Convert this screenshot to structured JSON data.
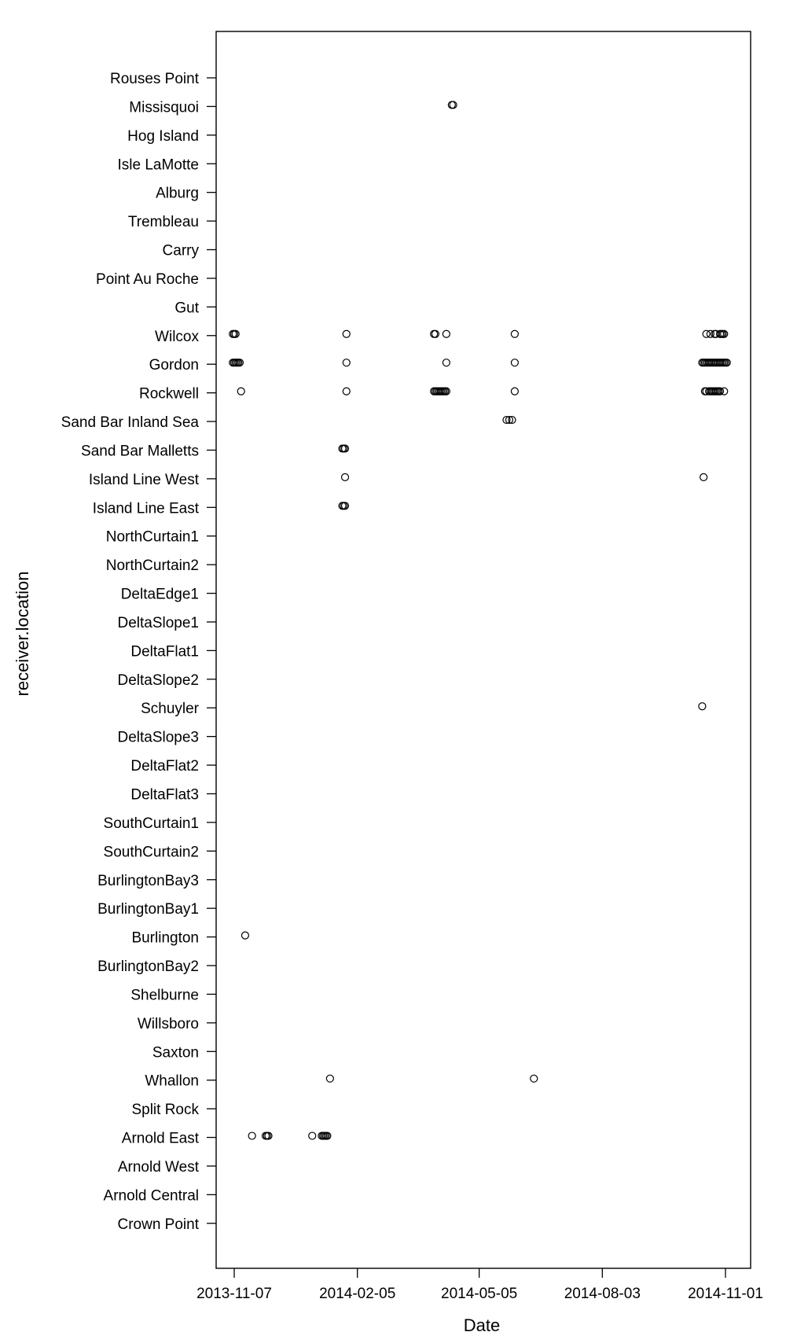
{
  "chart_data": {
    "type": "scatter",
    "xlabel": "Date",
    "ylabel": "receiver.location",
    "x_ticks": [
      "2013-11-07",
      "2014-02-05",
      "2014-05-05",
      "2014-08-03",
      "2014-11-01"
    ],
    "xlim": [
      "2013-10-29",
      "2014-11-15"
    ],
    "y_categories": [
      "Rouses Point",
      "Missisquoi",
      "Hog Island",
      "Isle LaMotte",
      "Alburg",
      "Trembleau",
      "Carry",
      "Point Au Roche",
      "Gut",
      "Wilcox",
      "Gordon",
      "Rockwell",
      "Sand Bar Inland Sea",
      "Sand Bar Malletts",
      "Island Line West",
      "Island Line East",
      "NorthCurtain1",
      "NorthCurtain2",
      "DeltaEdge1",
      "DeltaSlope1",
      "DeltaFlat1",
      "DeltaSlope2",
      "Schuyler",
      "DeltaSlope3",
      "DeltaFlat2",
      "DeltaFlat3",
      "SouthCurtain1",
      "SouthCurtain2",
      "BurlingtonBay3",
      "BurlingtonBay1",
      "Burlington",
      "BurlingtonBay2",
      "Shelburne",
      "Willsboro",
      "Saxton",
      "Whallon",
      "Split Rock",
      "Arnold East",
      "Arnold West",
      "Arnold Central",
      "Crown Point"
    ],
    "marker": "open-circle",
    "grid": false,
    "legend": "none",
    "points": [
      {
        "location": "Missisquoi",
        "dates": [
          "2014-04-15",
          "2014-04-16"
        ]
      },
      {
        "location": "Wilcox",
        "dates": [
          "2013-11-06",
          "2013-11-07",
          "2013-11-08",
          "2014-01-28",
          "2014-04-02",
          "2014-04-03",
          "2014-04-11",
          "2014-05-31",
          "2014-10-18",
          "2014-10-21",
          "2014-10-24",
          "2014-10-25",
          "2014-10-28",
          "2014-10-29",
          "2014-10-30",
          "2014-10-31"
        ]
      },
      {
        "location": "Gordon",
        "dates": [
          "2013-11-06",
          "2013-11-07",
          "2013-11-08",
          "2013-11-09",
          "2013-11-10",
          "2013-11-11",
          "2014-01-28",
          "2014-04-11",
          "2014-05-31",
          "2014-10-15",
          "2014-10-16",
          "2014-10-17",
          "2014-10-18",
          "2014-10-19",
          "2014-10-20",
          "2014-10-21",
          "2014-10-22",
          "2014-10-23",
          "2014-10-24",
          "2014-10-25",
          "2014-10-26",
          "2014-10-27",
          "2014-10-28",
          "2014-10-29",
          "2014-10-30",
          "2014-10-31",
          "2014-11-01",
          "2014-11-02"
        ]
      },
      {
        "location": "Rockwell",
        "dates": [
          "2013-11-12",
          "2014-01-28",
          "2014-04-02",
          "2014-04-03",
          "2014-04-04",
          "2014-04-05",
          "2014-04-06",
          "2014-04-07",
          "2014-04-08",
          "2014-04-09",
          "2014-04-10",
          "2014-04-11",
          "2014-05-31",
          "2014-10-17",
          "2014-10-18",
          "2014-10-20",
          "2014-10-21",
          "2014-10-22",
          "2014-10-23",
          "2014-10-24",
          "2014-10-25",
          "2014-10-26",
          "2014-10-27",
          "2014-10-28",
          "2014-10-31"
        ]
      },
      {
        "location": "Sand Bar Inland Sea",
        "dates": [
          "2014-05-25",
          "2014-05-27",
          "2014-05-29"
        ]
      },
      {
        "location": "Sand Bar Malletts",
        "dates": [
          "2014-01-25",
          "2014-01-26",
          "2014-01-27"
        ]
      },
      {
        "location": "Island Line West",
        "dates": [
          "2014-01-27",
          "2014-10-16"
        ]
      },
      {
        "location": "Island Line East",
        "dates": [
          "2014-01-25",
          "2014-01-26",
          "2014-01-27"
        ]
      },
      {
        "location": "Schuyler",
        "dates": [
          "2014-10-15"
        ]
      },
      {
        "location": "Burlington",
        "dates": [
          "2013-11-15"
        ]
      },
      {
        "location": "Whallon",
        "dates": [
          "2014-01-16",
          "2014-06-14"
        ]
      },
      {
        "location": "Arnold East",
        "dates": [
          "2013-11-20",
          "2013-11-30",
          "2013-12-01",
          "2013-12-02",
          "2014-01-03",
          "2014-01-10",
          "2014-01-11",
          "2014-01-12",
          "2014-01-13",
          "2014-01-14"
        ]
      }
    ]
  }
}
